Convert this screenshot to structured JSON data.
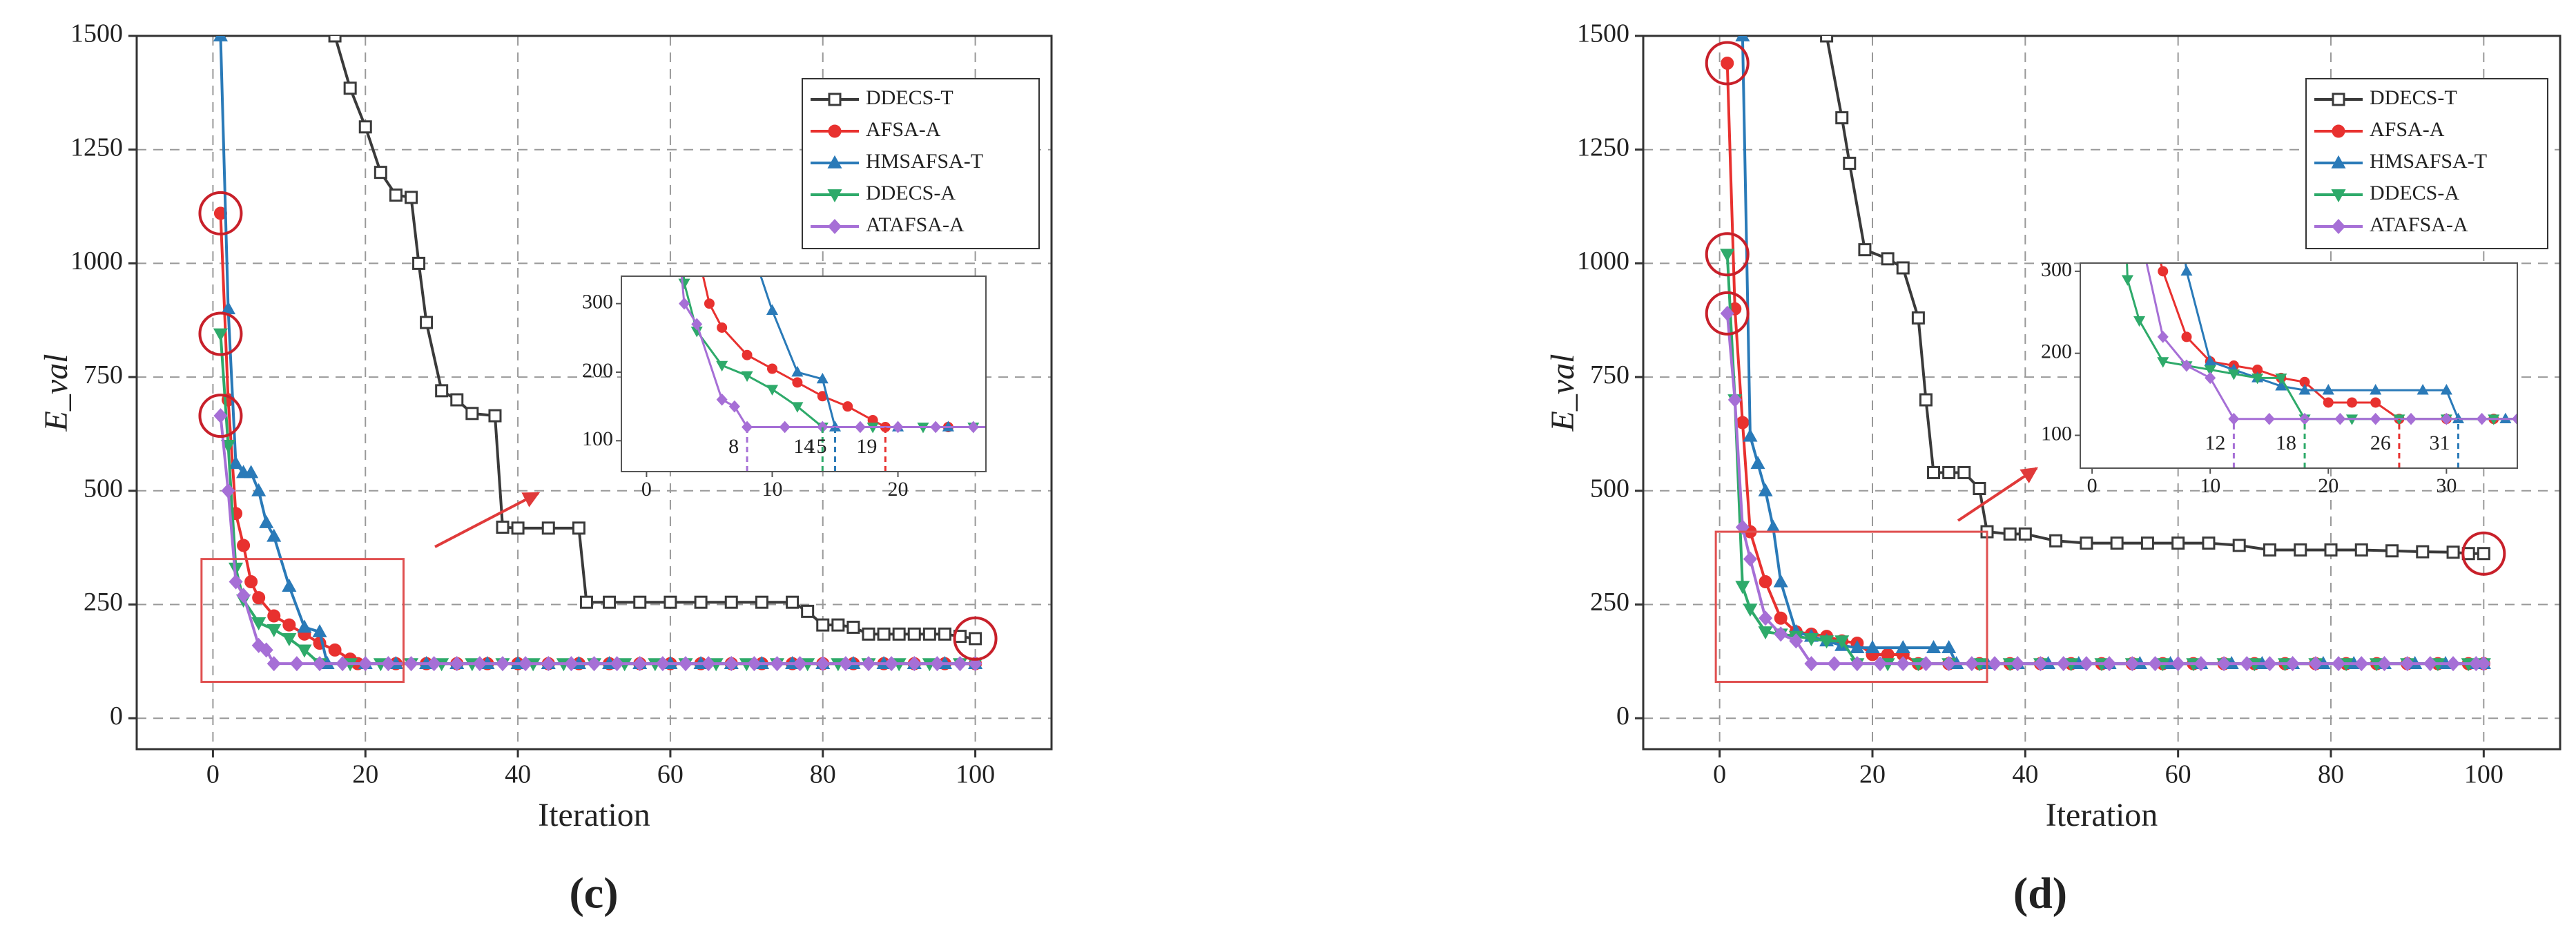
{
  "chart_data": [
    {
      "type": "line",
      "caption": "(c)",
      "x_label": "Iteration",
      "y_label": "E_val",
      "xlim": [
        -10,
        110
      ],
      "xticks": [
        0,
        20,
        40,
        60,
        80,
        100
      ],
      "ylim": [
        -68,
        1500
      ],
      "yticks": [
        0,
        250,
        500,
        750,
        1000,
        1250,
        1500
      ],
      "grid": true,
      "legend": "upper right",
      "series": [
        {
          "name": "DDECS-T",
          "color": "#3a3a3a",
          "marker": "square",
          "x": [
            16,
            18,
            20,
            22,
            24,
            26,
            27,
            28,
            30,
            32,
            34,
            37,
            38,
            40,
            44,
            48,
            49,
            52,
            56,
            60,
            64,
            68,
            72,
            76,
            78,
            80,
            82,
            84,
            86,
            88,
            90,
            92,
            94,
            96,
            98,
            100
          ],
          "values": [
            1500,
            1385,
            1300,
            1200,
            1150,
            1145,
            1000,
            870,
            720,
            700,
            670,
            665,
            420,
            418,
            418,
            418,
            255,
            255,
            255,
            255,
            255,
            255,
            255,
            255,
            235,
            205,
            205,
            200,
            185,
            185,
            185,
            185,
            185,
            185,
            180,
            175
          ]
        },
        {
          "name": "AFSA-A",
          "color": "#e8312f",
          "marker": "circle",
          "x": [
            1,
            2,
            3,
            4,
            5,
            6,
            8,
            10,
            12,
            14,
            16,
            18,
            19,
            24,
            28,
            32,
            36,
            40,
            44,
            48,
            52,
            56,
            60,
            64,
            68,
            72,
            76,
            80,
            84,
            88,
            92,
            96,
            100
          ],
          "values": [
            1110,
            700,
            450,
            380,
            300,
            265,
            225,
            205,
            185,
            165,
            150,
            130,
            120,
            120,
            120,
            120,
            120,
            120,
            120,
            120,
            120,
            120,
            120,
            120,
            120,
            120,
            120,
            120,
            120,
            120,
            120,
            120,
            120
          ]
        },
        {
          "name": "HMSAFSA-T",
          "color": "#2a7ab8",
          "marker": "triangle",
          "x": [
            1,
            2,
            3,
            4,
            5,
            6,
            7,
            8,
            10,
            12,
            14,
            15,
            20,
            24,
            28,
            32,
            36,
            40,
            44,
            48,
            52,
            56,
            60,
            64,
            68,
            72,
            76,
            80,
            84,
            88,
            92,
            96,
            100
          ],
          "values": [
            1500,
            900,
            560,
            540,
            540,
            500,
            430,
            400,
            290,
            200,
            190,
            120,
            120,
            120,
            120,
            120,
            120,
            120,
            120,
            120,
            120,
            120,
            120,
            120,
            120,
            120,
            120,
            120,
            120,
            120,
            120,
            120,
            120
          ]
        },
        {
          "name": "DDECS-A",
          "color": "#2eaa6a",
          "marker": "down",
          "x": [
            1,
            2,
            3,
            4,
            6,
            8,
            10,
            12,
            14,
            18,
            22,
            26,
            30,
            34,
            38,
            42,
            46,
            50,
            54,
            58,
            62,
            66,
            70,
            74,
            78,
            82,
            86,
            90,
            94,
            98,
            100
          ],
          "values": [
            845,
            600,
            330,
            260,
            210,
            195,
            175,
            150,
            120,
            120,
            120,
            120,
            120,
            120,
            120,
            120,
            120,
            120,
            120,
            120,
            120,
            120,
            120,
            120,
            120,
            120,
            120,
            120,
            120,
            120,
            120
          ]
        },
        {
          "name": "ATAFSA-A",
          "color": "#a66fd6",
          "marker": "diamond",
          "x": [
            1,
            2,
            3,
            4,
            6,
            7,
            8,
            11,
            14,
            17,
            20,
            23,
            26,
            29,
            32,
            35,
            38,
            41,
            44,
            47,
            50,
            53,
            56,
            59,
            62,
            65,
            68,
            71,
            74,
            77,
            80,
            83,
            86,
            89,
            92,
            95,
            98,
            100
          ],
          "values": [
            665,
            500,
            300,
            270,
            160,
            150,
            120,
            120,
            120,
            120,
            120,
            120,
            120,
            120,
            120,
            120,
            120,
            120,
            120,
            120,
            120,
            120,
            120,
            120,
            120,
            120,
            120,
            120,
            120,
            120,
            120,
            120,
            120,
            120,
            120,
            120,
            120,
            120
          ]
        }
      ],
      "inset": {
        "xlim": [
          -2,
          27
        ],
        "xticks": [
          0,
          10,
          20
        ],
        "ylim": [
          55,
          340
        ],
        "yticks": [
          100,
          200,
          300
        ],
        "markers": [
          {
            "value": 8,
            "color": "#a66fd6"
          },
          {
            "value": 14,
            "color": "#2eaa6a"
          },
          {
            "value": 15,
            "color": "#2a7ab8"
          },
          {
            "value": 19,
            "color": "#e8312f"
          }
        ]
      }
    },
    {
      "type": "line",
      "caption": "(d)",
      "x_label": "Iteration",
      "y_label": "E_val",
      "xlim": [
        -10,
        110
      ],
      "xticks": [
        0,
        20,
        40,
        60,
        80,
        100
      ],
      "ylim": [
        -68,
        1500
      ],
      "yticks": [
        0,
        250,
        500,
        750,
        1000,
        1250,
        1500
      ],
      "grid": true,
      "legend": "upper right",
      "series": [
        {
          "name": "DDECS-T",
          "color": "#3a3a3a",
          "marker": "square",
          "x": [
            14,
            16,
            17,
            19,
            22,
            24,
            26,
            27,
            28,
            30,
            32,
            34,
            35,
            38,
            40,
            44,
            48,
            52,
            56,
            60,
            64,
            68,
            72,
            76,
            80,
            84,
            88,
            92,
            96,
            98,
            100
          ],
          "values": [
            1500,
            1320,
            1220,
            1030,
            1010,
            990,
            880,
            700,
            540,
            540,
            540,
            505,
            410,
            405,
            405,
            390,
            385,
            385,
            385,
            385,
            385,
            380,
            370,
            370,
            370,
            370,
            368,
            366,
            365,
            362,
            362
          ]
        },
        {
          "name": "AFSA-A",
          "color": "#e8312f",
          "marker": "circle",
          "x": [
            1,
            2,
            3,
            4,
            6,
            8,
            10,
            12,
            14,
            16,
            18,
            20,
            22,
            24,
            26,
            30,
            34,
            38,
            42,
            46,
            50,
            54,
            58,
            62,
            66,
            70,
            74,
            78,
            82,
            86,
            90,
            94,
            98,
            100
          ],
          "values": [
            1440,
            900,
            650,
            410,
            300,
            220,
            190,
            185,
            180,
            170,
            165,
            140,
            140,
            140,
            120,
            120,
            120,
            120,
            120,
            120,
            120,
            120,
            120,
            120,
            120,
            120,
            120,
            120,
            120,
            120,
            120,
            120,
            120,
            120
          ]
        },
        {
          "name": "HMSAFSA-T",
          "color": "#2a7ab8",
          "marker": "triangle",
          "x": [
            3,
            4,
            5,
            6,
            7,
            8,
            10,
            12,
            14,
            16,
            18,
            20,
            24,
            28,
            30,
            31,
            35,
            39,
            43,
            47,
            51,
            55,
            59,
            63,
            67,
            71,
            75,
            79,
            83,
            87,
            91,
            95,
            99,
            100
          ],
          "values": [
            1500,
            620,
            560,
            500,
            420,
            300,
            190,
            180,
            170,
            160,
            155,
            155,
            155,
            155,
            155,
            120,
            120,
            120,
            120,
            120,
            120,
            120,
            120,
            120,
            120,
            120,
            120,
            120,
            120,
            120,
            120,
            120,
            120,
            120
          ]
        },
        {
          "name": "DDECS-A",
          "color": "#2eaa6a",
          "marker": "down",
          "x": [
            1,
            2,
            3,
            4,
            6,
            8,
            10,
            12,
            14,
            16,
            18,
            22,
            26,
            30,
            34,
            38,
            42,
            46,
            50,
            54,
            58,
            62,
            66,
            70,
            74,
            78,
            82,
            86,
            90,
            94,
            98,
            100
          ],
          "values": [
            1020,
            700,
            290,
            240,
            190,
            185,
            180,
            175,
            170,
            170,
            120,
            120,
            120,
            120,
            120,
            120,
            120,
            120,
            120,
            120,
            120,
            120,
            120,
            120,
            120,
            120,
            120,
            120,
            120,
            120,
            120,
            120
          ]
        },
        {
          "name": "ATAFSA-A",
          "color": "#a66fd6",
          "marker": "diamond",
          "x": [
            1,
            2,
            3,
            4,
            6,
            8,
            10,
            12,
            15,
            18,
            21,
            24,
            27,
            30,
            33,
            36,
            39,
            42,
            45,
            48,
            51,
            54,
            57,
            60,
            63,
            66,
            69,
            72,
            75,
            78,
            81,
            84,
            87,
            90,
            93,
            96,
            99,
            100
          ],
          "values": [
            890,
            700,
            420,
            350,
            220,
            185,
            170,
            120,
            120,
            120,
            120,
            120,
            120,
            120,
            120,
            120,
            120,
            120,
            120,
            120,
            120,
            120,
            120,
            120,
            120,
            120,
            120,
            120,
            120,
            120,
            120,
            120,
            120,
            120,
            120,
            120,
            120,
            120
          ]
        }
      ],
      "inset": {
        "xlim": [
          -1,
          36
        ],
        "xticks": [
          0,
          10,
          20,
          30
        ],
        "ylim": [
          60,
          310
        ],
        "yticks": [
          100,
          200,
          300
        ],
        "markers": [
          {
            "value": 12,
            "color": "#a66fd6"
          },
          {
            "value": 18,
            "color": "#2eaa6a"
          },
          {
            "value": 26,
            "color": "#e8312f"
          },
          {
            "value": 31,
            "color": "#2a7ab8"
          }
        ]
      }
    }
  ]
}
